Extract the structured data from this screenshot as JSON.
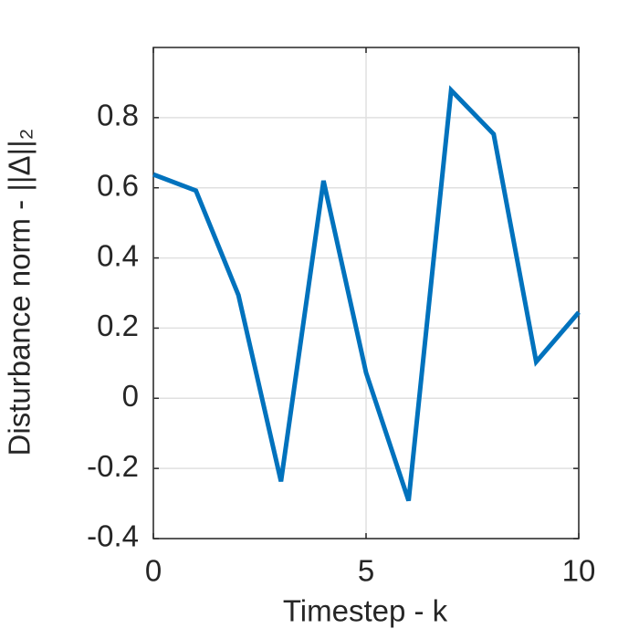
{
  "chart_data": {
    "type": "line",
    "xlabel": "Timestep - k",
    "ylabel": "Disturbance norm - ||Δ||₂",
    "x": [
      0,
      1,
      2,
      3,
      4,
      5,
      6,
      7,
      8,
      9,
      10
    ],
    "series": [
      {
        "name": "disturbance",
        "color": "#0072bd",
        "values": [
          0.638,
          0.592,
          0.294,
          -0.237,
          0.62,
          0.073,
          -0.292,
          0.878,
          0.753,
          0.104,
          0.245
        ]
      }
    ],
    "xlim": [
      0,
      10
    ],
    "xticks": [
      0,
      5,
      10
    ],
    "ylim": [
      -0.4,
      1.0
    ],
    "yticks": [
      -0.4,
      -0.2,
      0,
      0.2,
      0.4,
      0.6,
      0.8
    ],
    "grid": true
  }
}
